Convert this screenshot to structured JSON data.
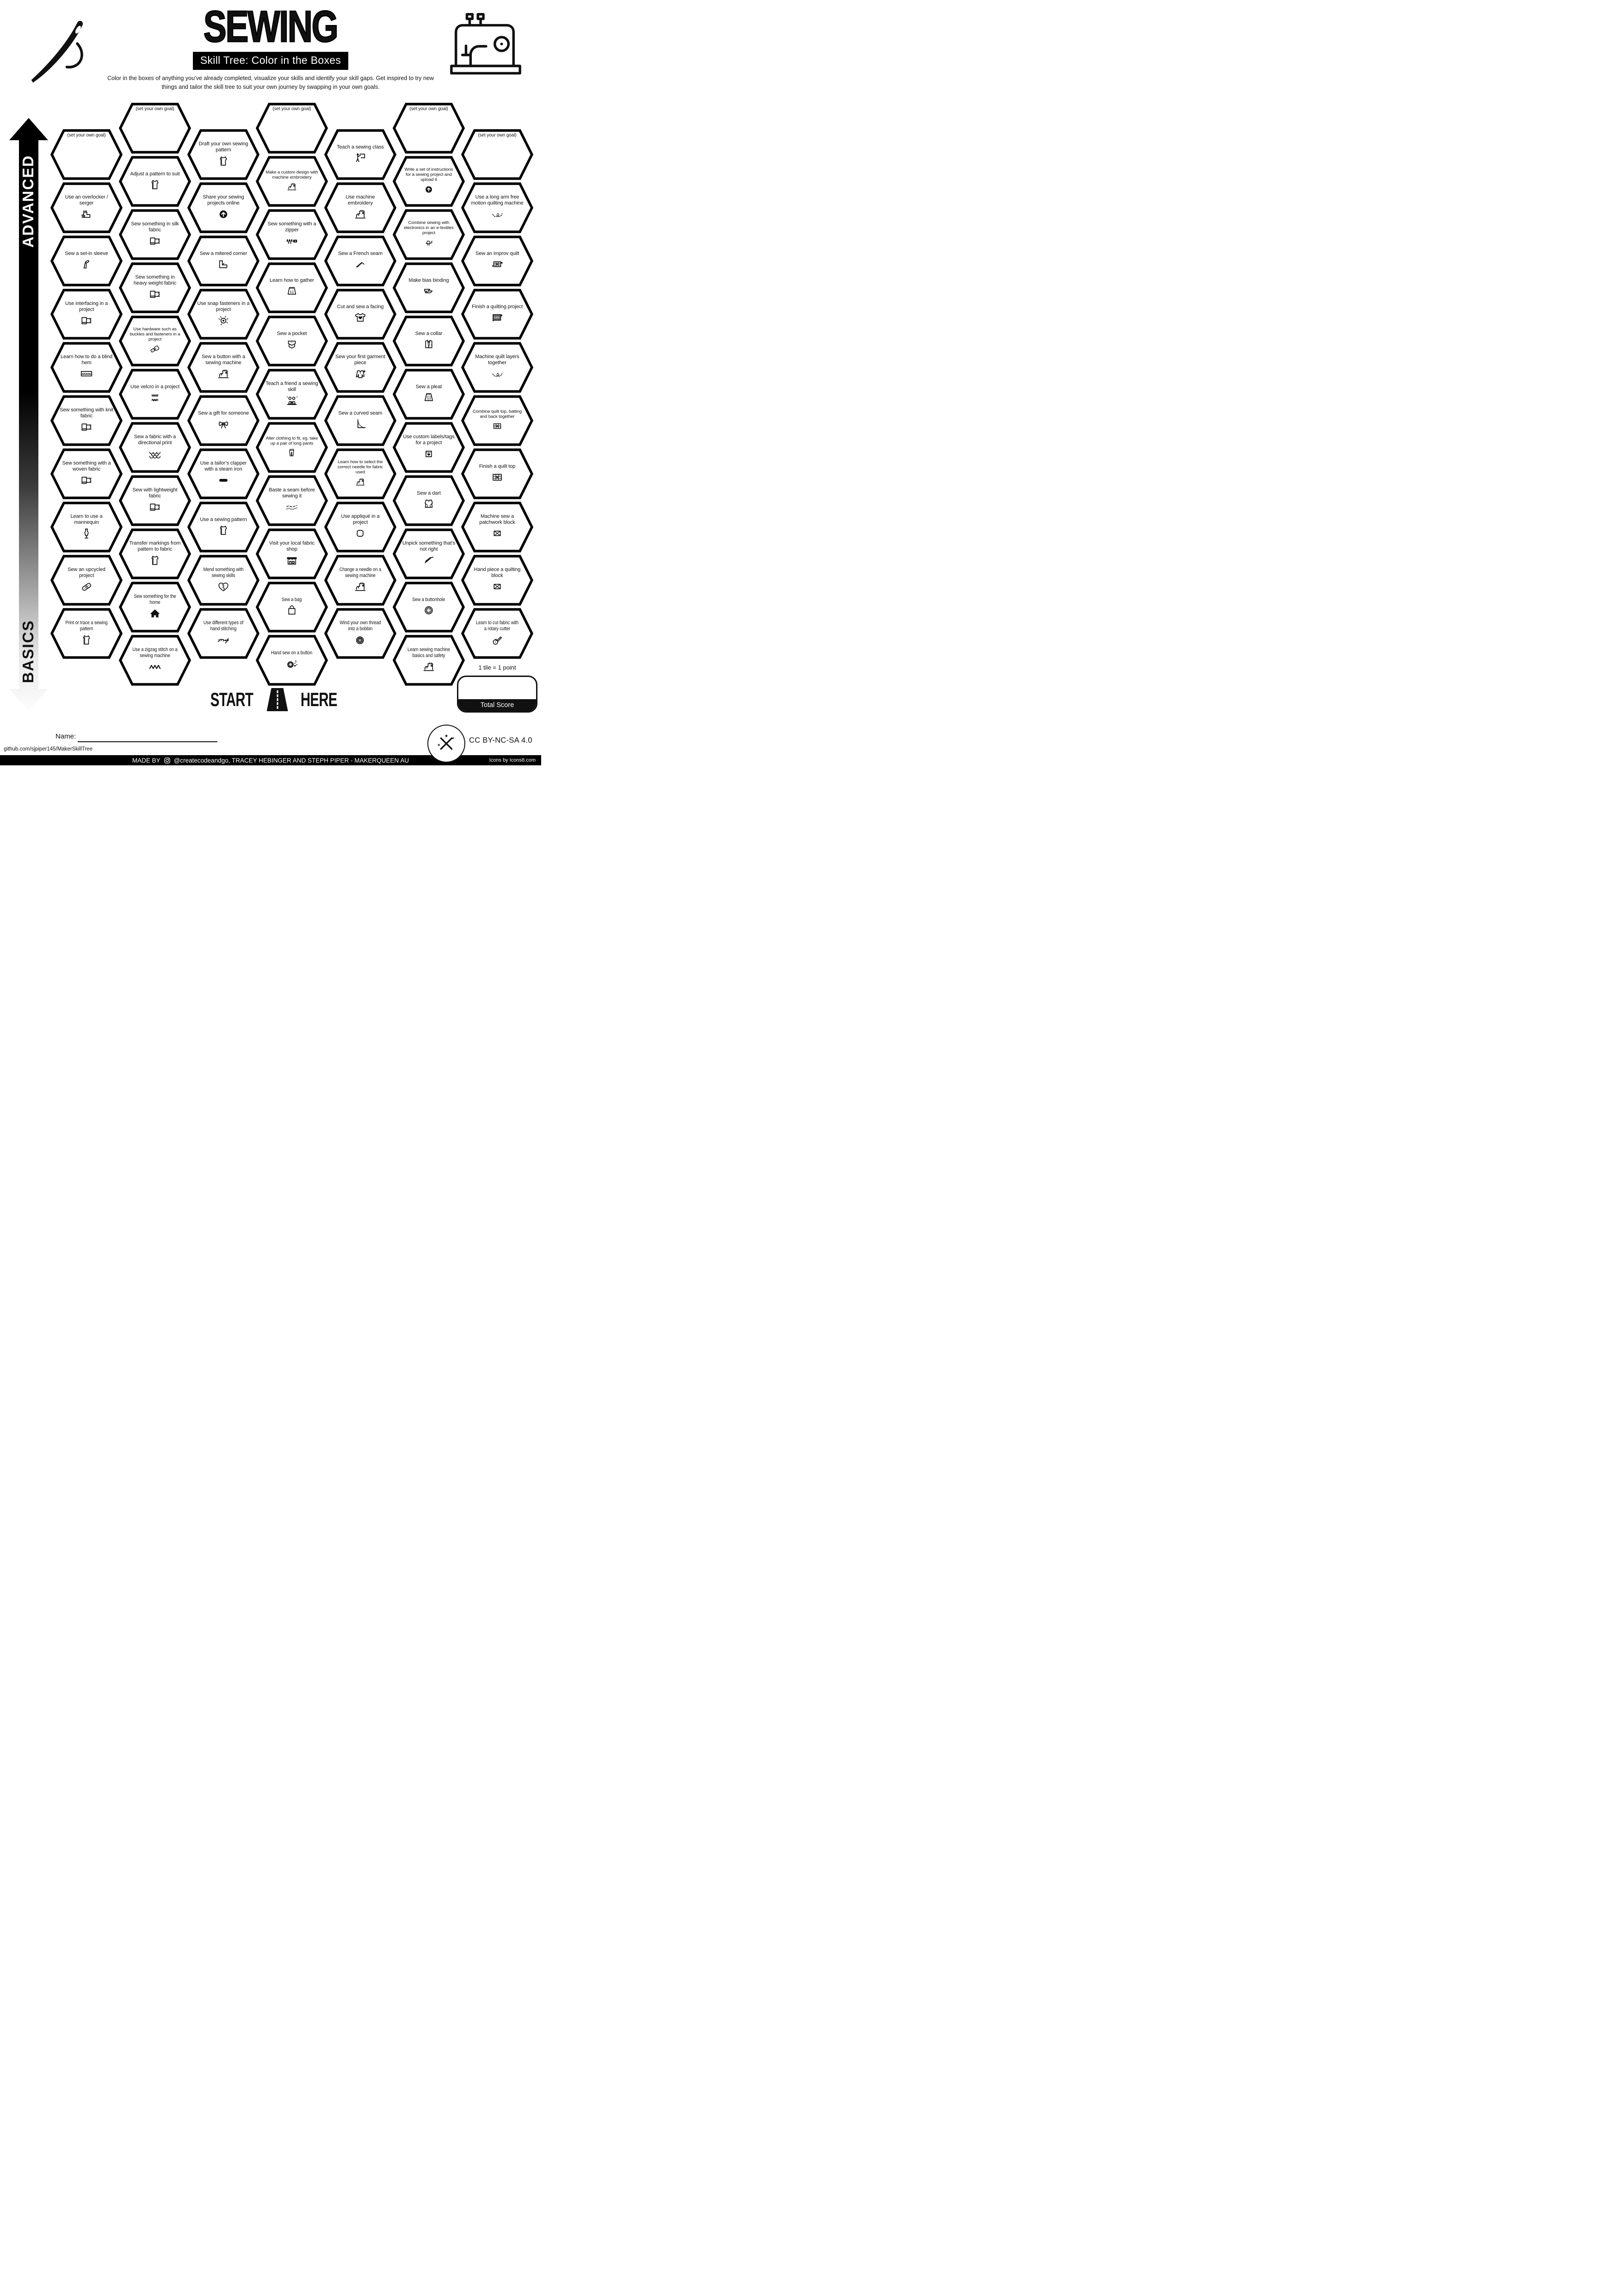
{
  "header": {
    "title": "SEWING",
    "subtitle": "Skill Tree: Color in the Boxes",
    "description": "Color in the boxes of anything you’ve already completed, visualize your skills and identify your skill gaps.  Get inspired to try new things and tailor the skill tree to suit your own journey by swapping in your own goals."
  },
  "axis": {
    "top": "ADVANCED",
    "bottom": "BASICS"
  },
  "start": {
    "left": "START",
    "right": "HERE"
  },
  "grid": {
    "columns": [
      {
        "tiles": [
          {
            "label": "(set your own goal)",
            "icon": "goal",
            "goal": true
          },
          {
            "label": "Use an overlocker / serger",
            "icon": "serger"
          },
          {
            "label": "Sew a set-in sleeve",
            "icon": "sleeve"
          },
          {
            "label": "Use interfacing in a project",
            "icon": "fabric"
          },
          {
            "label": "Learn how to do a blind hem",
            "icon": "blind-hem"
          },
          {
            "label": "Sew something with knit fabric",
            "icon": "fabric"
          },
          {
            "label": "Sew something with a woven fabric",
            "icon": "fabric"
          },
          {
            "label": "Learn to use a mannequin",
            "icon": "mannequin"
          },
          {
            "label": "Sew an upcycled project",
            "icon": "patch"
          },
          {
            "label": "Print or trace a sewing pattern",
            "icon": "pattern",
            "narrow": true
          }
        ]
      },
      {
        "tiles": [
          {
            "label": "(set your own goal)",
            "icon": "goal",
            "goal": true
          },
          {
            "label": "Adjust a pattern to suit",
            "icon": "pattern"
          },
          {
            "label": "Sew something in silk fabric",
            "icon": "fabric"
          },
          {
            "label": "Sew something in heavy weight fabric",
            "icon": "fabric"
          },
          {
            "label": "Use hardware such as buckles and fasteners in a project",
            "icon": "buckle"
          },
          {
            "label": "Use velcro in a project",
            "icon": "velcro"
          },
          {
            "label": "Sew a fabric with a directional print",
            "icon": "scales"
          },
          {
            "label": "Sew with lightweight fabric",
            "icon": "fabric"
          },
          {
            "label": "Transfer markings from pattern to fabric",
            "icon": "pattern"
          },
          {
            "label": "Sew something for the home",
            "icon": "house",
            "narrow": true
          },
          {
            "label": "Use a zigzag stitch on a sewing machine",
            "icon": "zigzag",
            "narrow": true
          }
        ]
      },
      {
        "tiles": [
          {
            "label": "Draft your own sewing pattern",
            "icon": "pattern"
          },
          {
            "label": "Share your sewing projects online",
            "icon": "upload"
          },
          {
            "label": "Sew a mitered corner",
            "icon": "miter"
          },
          {
            "label": "Use snap fasteners in a project",
            "icon": "snap"
          },
          {
            "label": "Sew a button with a sewing machine",
            "icon": "sewing-machine"
          },
          {
            "label": "Sew a gift for someone",
            "icon": "bow"
          },
          {
            "label": "Use a tailor’s clapper with a steam iron",
            "icon": "clapper"
          },
          {
            "label": "Use a sewing pattern",
            "icon": "pattern"
          },
          {
            "label": "Mend something with sewing skills",
            "icon": "mend-heart",
            "narrow": true
          },
          {
            "label": "Use different types of hand stitching",
            "icon": "hand-stitch",
            "narrow": true
          }
        ]
      },
      {
        "tiles": [
          {
            "label": "(set your own goal)",
            "icon": "goal",
            "goal": true
          },
          {
            "label": "Make a custom design with machine embroidery",
            "icon": "sewing-machine"
          },
          {
            "label": "Sew something with a zipper",
            "icon": "zipper"
          },
          {
            "label": "Learn how to gather",
            "icon": "skirt-gather"
          },
          {
            "label": "Sew a pocket",
            "icon": "pocket"
          },
          {
            "label": "Teach a friend a sewing skill",
            "icon": "friends"
          },
          {
            "label": "Alter clothing to fit, eg. take up a pair of long pants",
            "icon": "pants"
          },
          {
            "label": "Baste a seam before sewing it",
            "icon": "baste"
          },
          {
            "label": "Visit your local fabric shop",
            "icon": "shop"
          },
          {
            "label": "Sew a bag",
            "icon": "bag",
            "narrow": true
          },
          {
            "label": "Hand sew on a button",
            "icon": "button-confetti",
            "narrow": true
          }
        ]
      },
      {
        "tiles": [
          {
            "label": "Teach a sewing class",
            "icon": "teacher"
          },
          {
            "label": "Use machine embroidery",
            "icon": "sewing-machine"
          },
          {
            "label": "Sew a French seam",
            "icon": "french-seam"
          },
          {
            "label": "Cut and sew a facing",
            "icon": "tshirt-heart"
          },
          {
            "label": "Sew your first garment piece",
            "icon": "jacket-sparkle"
          },
          {
            "label": "Sew a curved seam",
            "icon": "curved-seam"
          },
          {
            "label": "Learn how to select the correct needle for fabric used",
            "icon": "sewing-machine"
          },
          {
            "label": "Use appliqué in a project",
            "icon": "applique"
          },
          {
            "label": "Change a needle on a sewing machine",
            "icon": "sewing-machine",
            "narrow": true
          },
          {
            "label": "Wind your own thread into a bobbin",
            "icon": "bobbin",
            "narrow": true
          }
        ]
      },
      {
        "tiles": [
          {
            "label": "(set your own goal)",
            "icon": "goal",
            "goal": true
          },
          {
            "label": "Write a set of instructions for a sewing project and upload it",
            "icon": "upload"
          },
          {
            "label": "Combine sewing with electronics in an e-textiles project",
            "icon": "led"
          },
          {
            "label": "Make bias binding",
            "icon": "bias"
          },
          {
            "label": "Sew a collar",
            "icon": "collar"
          },
          {
            "label": "Sew a pleat",
            "icon": "skirt-pleat"
          },
          {
            "label": "Use custom labels/tags for a project",
            "icon": "label-tag"
          },
          {
            "label": "Sew a dart",
            "icon": "dart"
          },
          {
            "label": "Unpick something that’s not right",
            "icon": "seam-ripper"
          },
          {
            "label": "Sew a buttonhole",
            "icon": "button",
            "narrow": true
          },
          {
            "label": "Learn sewing machine basics and safety",
            "icon": "sewing-machine",
            "narrow": true
          }
        ]
      },
      {
        "tiles": [
          {
            "label": "(set your own goal)",
            "icon": "goal",
            "goal": true
          },
          {
            "label": "Use a long arm free motion quilting machine",
            "icon": "swirl"
          },
          {
            "label": "Sew an improv quilt",
            "icon": "quilt-sparkle"
          },
          {
            "label": "Finish a quilting project",
            "icon": "quilt-framed"
          },
          {
            "label": "Machine quilt layers together",
            "icon": "swirl"
          },
          {
            "label": "Combine quilt top, batting and back together",
            "icon": "quilt"
          },
          {
            "label": "Finish a quilt top",
            "icon": "quilt"
          },
          {
            "label": "Machine sew a patchwork block",
            "icon": "block-x"
          },
          {
            "label": "Hand piece a quilting block",
            "icon": "block-x"
          },
          {
            "label": "Learn to cut fabric with a rotary cutter",
            "icon": "rotary",
            "narrow": true
          }
        ]
      }
    ]
  },
  "footer": {
    "name_label": "Name:",
    "github": "github.com/sjpiper145/MakerSkillTree",
    "license": "CC BY-NC-SA 4.0",
    "made_by": "MADE BY",
    "credits": "@createcodeandgo, TRACEY HEBINGER  AND STEPH PIPER  -  MAKERQUEEN AU",
    "icons_credit": "Icons by Icons8.com",
    "tile_point": "1 tile = 1 point",
    "total_score": "Total Score"
  }
}
